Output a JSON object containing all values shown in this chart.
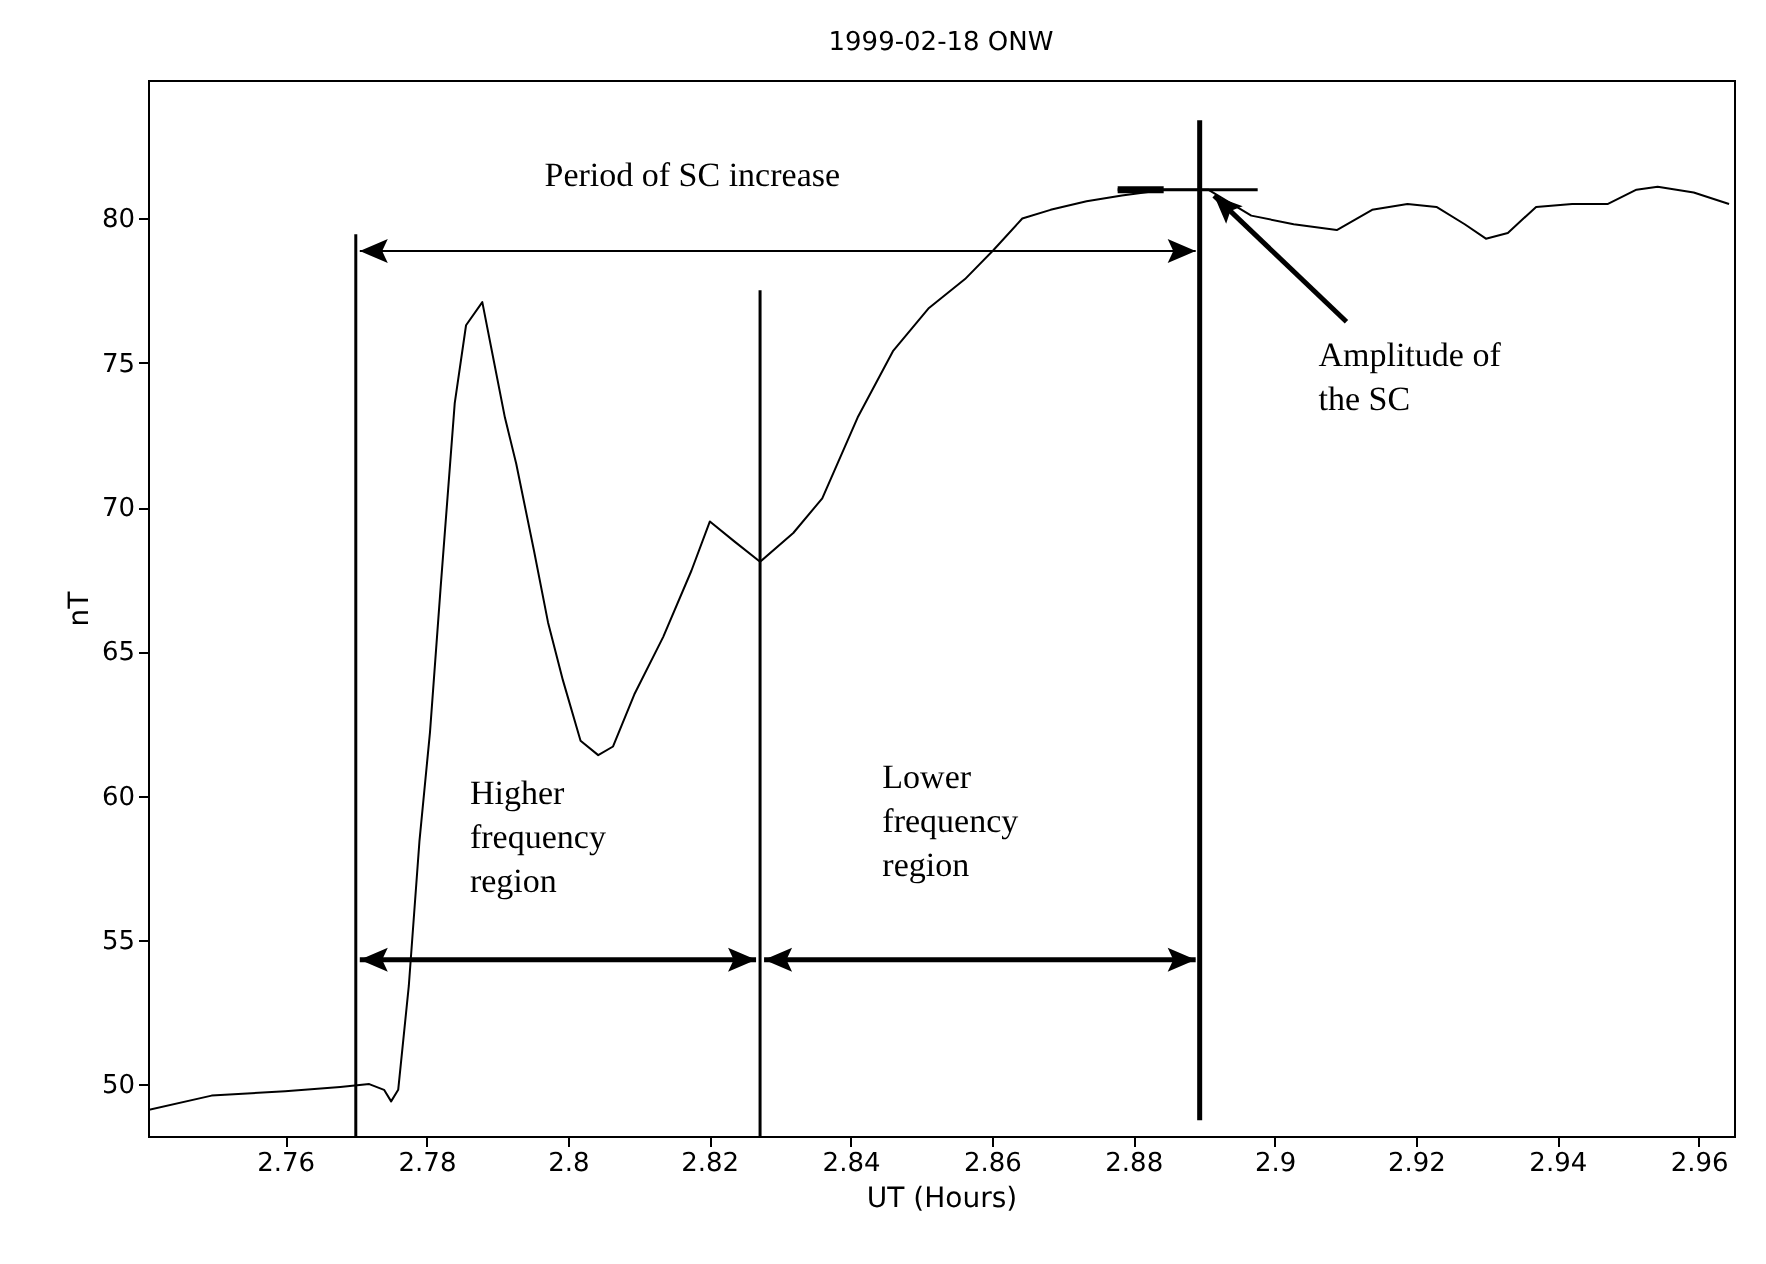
{
  "chart_data": {
    "type": "line",
    "title": "1999-02-18 ONW",
    "xlabel": "UT (Hours)",
    "ylabel": "nT",
    "xlim": [
      2.7406,
      2.965
    ],
    "ylim": [
      48.2,
      84.8
    ],
    "xticks": [
      2.76,
      2.78,
      {
        "value": 2.8,
        "label": "2.8"
      },
      2.82,
      2.84,
      2.86,
      2.88,
      {
        "value": 2.9,
        "label": "2.9"
      },
      2.92,
      2.94,
      2.96
    ],
    "yticks": [
      50,
      55,
      60,
      65,
      70,
      75,
      80
    ],
    "grid": false,
    "marker": "none",
    "line_style": "solid",
    "series": [
      {
        "color": "#000000",
        "x": [
          2.7406,
          2.7496,
          2.76,
          2.7678,
          2.7719,
          2.774,
          2.775,
          2.776,
          2.7775,
          2.779,
          2.7805,
          2.782,
          2.784,
          2.7856,
          2.7879,
          2.7891,
          2.7911,
          2.7927,
          2.7952,
          2.7972,
          2.7993,
          2.8018,
          2.8043,
          2.8064,
          2.8094,
          2.8135,
          2.8175,
          2.8201,
          2.8236,
          2.8272,
          2.8319,
          2.836,
          2.841,
          2.846,
          2.8511,
          2.8562,
          2.8602,
          2.8643,
          2.8683,
          2.8734,
          2.8784,
          2.8845,
          2.8906,
          2.8967,
          2.9027,
          2.9088,
          2.9138,
          2.9188,
          2.9229,
          2.9269,
          2.9299,
          2.933,
          2.937,
          2.9421,
          2.9471,
          2.9512,
          2.9542,
          2.9593,
          2.9643
        ],
        "values": [
          49.1,
          49.6,
          49.75,
          49.9,
          50.0,
          49.8,
          49.4,
          49.8,
          53.4,
          58.4,
          62.2,
          67.2,
          73.6,
          76.3,
          77.1,
          75.6,
          73.1,
          71.5,
          68.5,
          66.0,
          64.0,
          61.9,
          61.4,
          61.7,
          63.5,
          65.5,
          67.8,
          69.5,
          68.8,
          68.1,
          69.1,
          70.3,
          73.1,
          75.4,
          76.9,
          77.9,
          78.9,
          80.0,
          80.3,
          80.6,
          80.8,
          81.0,
          81.0,
          80.1,
          79.8,
          79.6,
          80.3,
          80.5,
          80.4,
          79.8,
          79.3,
          79.5,
          80.4,
          80.5,
          80.5,
          81.0,
          81.1,
          80.9,
          80.5
        ]
      }
    ],
    "ref_lines": [
      {
        "axis": "x",
        "value": 2.77,
        "color": "#000000"
      },
      {
        "axis": "x",
        "value": 2.8272,
        "color": "#000000"
      },
      {
        "axis": "x",
        "value": 2.8894,
        "color": "#000000"
      }
    ],
    "annotations": [
      "Period of SC increase",
      "Higher\nfrequency\nregion",
      "Lower\nfrequency\nregion",
      {
        "text": "Amplitude of\nthe SC",
        "x": 2.8906,
        "y": 81.0
      }
    ]
  }
}
